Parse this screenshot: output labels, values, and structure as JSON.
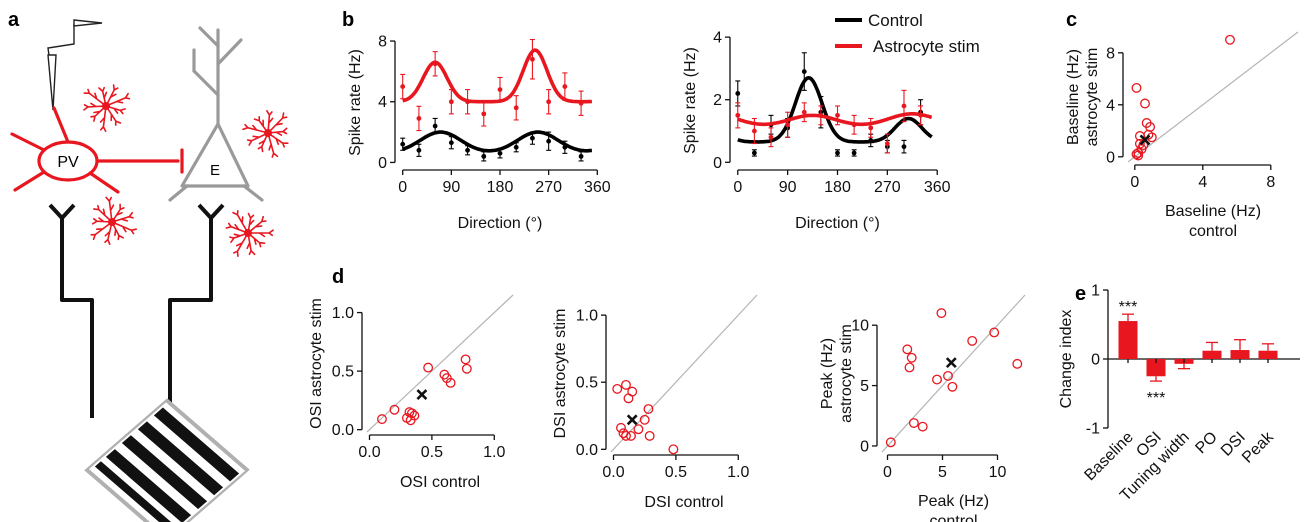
{
  "panel_labels": [
    "a",
    "b",
    "c",
    "d",
    "e"
  ],
  "schematic": {
    "pv_label": "PV",
    "e_label": "E"
  },
  "colors": {
    "control": "#000000",
    "astro": "#e8171f",
    "identity": "#b4b4b4",
    "schematic_gray": "#9a9a9a"
  },
  "chart_data": [
    {
      "id": "b1",
      "type": "line",
      "xlabel": "Direction (°)",
      "ylabel": "Spike rate (Hz)",
      "xlim": [
        -5,
        365
      ],
      "ylim": [
        -0.3,
        8.2
      ],
      "xticks": [
        0,
        90,
        180,
        270,
        360
      ],
      "yticks": [
        0,
        4,
        8
      ],
      "series": [
        {
          "name": "Control",
          "x": [
            0,
            30,
            60,
            90,
            120,
            150,
            180,
            210,
            240,
            270,
            300,
            330
          ],
          "y": [
            1.2,
            0.8,
            2.4,
            1.3,
            0.8,
            0.4,
            0.6,
            1.0,
            1.6,
            1.4,
            1.0,
            0.4
          ],
          "err": [
            0.4,
            0.4,
            0.5,
            0.4,
            0.3,
            0.3,
            0.3,
            0.3,
            0.4,
            0.6,
            0.4,
            0.3
          ],
          "fit": {
            "base": 0.6,
            "peaks": [
              [
                70,
                1.4
              ],
              [
                250,
                1.4
              ]
            ],
            "width": 38
          }
        },
        {
          "name": "Astrocyte stim",
          "x": [
            0,
            30,
            60,
            90,
            120,
            150,
            180,
            210,
            240,
            270,
            300,
            330
          ],
          "y": [
            5.0,
            2.9,
            6.5,
            4.0,
            4.0,
            3.2,
            4.8,
            3.6,
            6.8,
            4.0,
            5.0,
            3.9
          ],
          "err": [
            0.8,
            0.8,
            0.8,
            0.8,
            0.8,
            0.8,
            0.8,
            0.8,
            1.3,
            0.8,
            0.9,
            0.8
          ],
          "fit": {
            "base": 4.0,
            "peaks": [
              [
                60,
                2.6
              ],
              [
                245,
                3.4
              ]
            ],
            "width": 22
          }
        }
      ]
    },
    {
      "id": "b2",
      "type": "line",
      "xlabel": "Direction (°)",
      "ylabel": "Spike rate (Hz)",
      "xlim": [
        -5,
        365
      ],
      "ylim": [
        -0.15,
        4.1
      ],
      "xticks": [
        0,
        90,
        180,
        270,
        360
      ],
      "yticks": [
        0,
        2,
        4
      ],
      "legend": {
        "position": "top-right",
        "entries": [
          "Control",
          "Astrocyte stim"
        ]
      },
      "series": [
        {
          "name": "Control",
          "x": [
            0,
            30,
            60,
            90,
            120,
            150,
            180,
            210,
            240,
            270,
            300,
            330
          ],
          "y": [
            2.2,
            0.3,
            1.2,
            1.1,
            2.9,
            1.6,
            0.3,
            0.3,
            0.7,
            0.5,
            0.5,
            1.6
          ],
          "err": [
            0.4,
            0.1,
            0.3,
            0.3,
            0.6,
            0.5,
            0.1,
            0.1,
            0.2,
            0.2,
            0.2,
            0.4
          ],
          "fit": {
            "base": 0.65,
            "peaks": [
              [
                128,
                2.05
              ],
              [
                308,
                0.75
              ]
            ],
            "width": 24
          }
        },
        {
          "name": "Astrocyte stim",
          "x": [
            0,
            30,
            60,
            90,
            120,
            150,
            180,
            210,
            240,
            270,
            300,
            330
          ],
          "y": [
            1.5,
            1.0,
            0.8,
            1.2,
            1.6,
            1.5,
            1.5,
            1.2,
            1.1,
            0.6,
            1.8,
            1.5
          ],
          "err": [
            0.4,
            0.4,
            0.3,
            0.4,
            0.3,
            0.3,
            0.3,
            0.3,
            0.3,
            0.3,
            0.5,
            0.3
          ],
          "fit": {
            "base": 1.1,
            "peaks": [
              [
                135,
                0.4
              ],
              [
                315,
                0.45
              ]
            ],
            "width": 45
          }
        }
      ]
    },
    {
      "id": "c",
      "type": "scatter",
      "xlabel": "Baseline (Hz)",
      "xlabel2": "control",
      "ylabel": "Baseline (Hz)",
      "ylabel2": "astrocyte stim",
      "xlim": [
        -0.4,
        9.6
      ],
      "ylim": [
        -0.4,
        9.6
      ],
      "xticks": [
        0,
        4,
        8
      ],
      "yticks": [
        0,
        4,
        8
      ],
      "points": [
        [
          0.1,
          0.2
        ],
        [
          0.1,
          5.3
        ],
        [
          0.2,
          0.3
        ],
        [
          0.3,
          1.6
        ],
        [
          0.3,
          1.0
        ],
        [
          0.4,
          0.6
        ],
        [
          0.2,
          0.1
        ],
        [
          0.6,
          4.1
        ],
        [
          0.7,
          2.6
        ],
        [
          0.9,
          2.3
        ],
        [
          0.8,
          1.7
        ],
        [
          1.0,
          1.5
        ],
        [
          0.5,
          0.9
        ],
        [
          5.6,
          9.0
        ]
      ],
      "mean": [
        0.6,
        1.3
      ]
    },
    {
      "id": "d1",
      "type": "scatter",
      "xlabel": "OSI control",
      "ylabel": "OSI astrocyte stim",
      "xlim": [
        -0.02,
        1.15
      ],
      "ylim": [
        -0.02,
        1.15
      ],
      "xticks": [
        0.0,
        0.5,
        1.0
      ],
      "yticks": [
        0.0,
        0.5,
        1.0
      ],
      "points": [
        [
          0.1,
          0.09
        ],
        [
          0.2,
          0.17
        ],
        [
          0.3,
          0.1
        ],
        [
          0.32,
          0.15
        ],
        [
          0.34,
          0.14
        ],
        [
          0.36,
          0.12
        ],
        [
          0.33,
          0.08
        ],
        [
          0.47,
          0.53
        ],
        [
          0.6,
          0.47
        ],
        [
          0.62,
          0.44
        ],
        [
          0.65,
          0.4
        ],
        [
          0.77,
          0.6
        ],
        [
          0.78,
          0.52
        ]
      ],
      "mean": [
        0.42,
        0.3
      ]
    },
    {
      "id": "d2",
      "type": "scatter",
      "xlabel": "DSI control",
      "ylabel": "DSI astrocyte stim",
      "xlim": [
        -0.02,
        1.15
      ],
      "ylim": [
        -0.02,
        1.15
      ],
      "xticks": [
        0.0,
        0.5,
        1.0
      ],
      "yticks": [
        0.0,
        0.5,
        1.0
      ],
      "points": [
        [
          0.03,
          0.45
        ],
        [
          0.06,
          0.16
        ],
        [
          0.08,
          0.12
        ],
        [
          0.1,
          0.48
        ],
        [
          0.12,
          0.38
        ],
        [
          0.1,
          0.1
        ],
        [
          0.14,
          0.1
        ],
        [
          0.15,
          0.43
        ],
        [
          0.2,
          0.15
        ],
        [
          0.25,
          0.22
        ],
        [
          0.28,
          0.3
        ],
        [
          0.29,
          0.1
        ],
        [
          0.48,
          0.0
        ]
      ],
      "mean": [
        0.15,
        0.22
      ]
    },
    {
      "id": "d3",
      "type": "scatter",
      "xlabel": "Peak (Hz)",
      "xlabel2": "control",
      "ylabel": "Peak (Hz)",
      "ylabel2": "astrocyte stim",
      "xlim": [
        -0.5,
        12.5
      ],
      "ylim": [
        -0.5,
        12.5
      ],
      "xticks": [
        0,
        5,
        10
      ],
      "yticks": [
        0,
        5,
        10
      ],
      "points": [
        [
          0.3,
          0.3
        ],
        [
          1.8,
          8.0
        ],
        [
          2.0,
          6.5
        ],
        [
          2.2,
          7.3
        ],
        [
          2.4,
          1.9
        ],
        [
          3.2,
          1.6
        ],
        [
          4.5,
          5.5
        ],
        [
          4.9,
          11.0
        ],
        [
          5.5,
          5.8
        ],
        [
          5.9,
          4.9
        ],
        [
          7.7,
          8.7
        ],
        [
          9.7,
          9.4
        ],
        [
          11.8,
          6.8
        ]
      ],
      "mean": [
        5.8,
        6.9
      ]
    },
    {
      "id": "e",
      "type": "bar",
      "ylabel": "Change index",
      "categories": [
        "Baseline",
        "OSI",
        "Tuning width",
        "PO",
        "DSI",
        "Peak"
      ],
      "values": [
        0.55,
        -0.25,
        -0.07,
        0.12,
        0.13,
        0.12
      ],
      "errors": [
        0.1,
        0.07,
        0.07,
        0.12,
        0.15,
        0.1
      ],
      "annotations": [
        "***",
        "***",
        "",
        "",
        "",
        ""
      ],
      "ylim": [
        -1,
        1
      ],
      "yticks": [
        -1,
        0,
        1
      ]
    }
  ]
}
